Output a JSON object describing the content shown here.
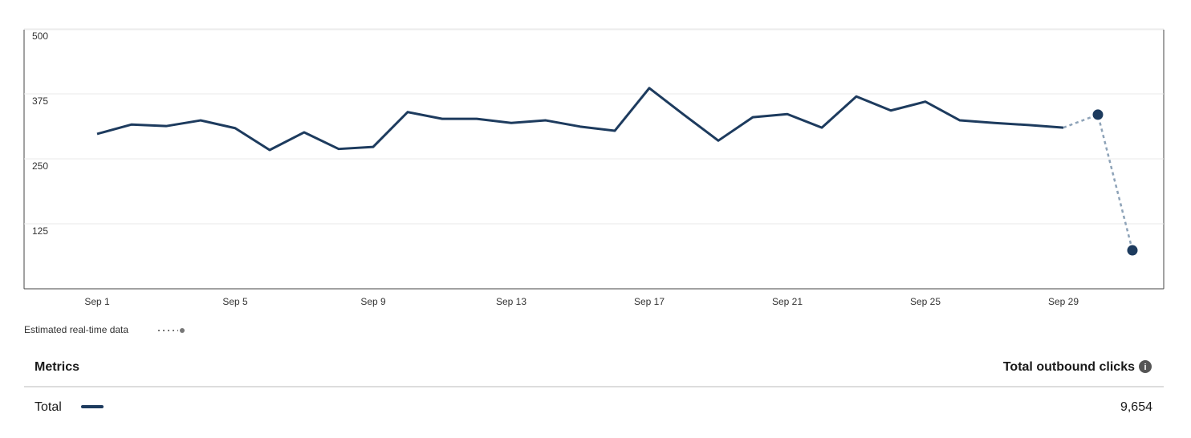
{
  "chart_data": {
    "type": "line",
    "categories": [
      "Sep 1",
      null,
      null,
      null,
      "Sep 5",
      null,
      null,
      null,
      "Sep 9",
      null,
      null,
      null,
      "Sep 13",
      null,
      null,
      null,
      "Sep 17",
      null,
      null,
      null,
      "Sep 21",
      null,
      null,
      null,
      "Sep 25",
      null,
      null,
      null,
      "Sep 29",
      null,
      null
    ],
    "series": [
      {
        "name": "Total",
        "color": "#1d3b5e",
        "values": [
          298,
          316,
          313,
          324,
          309,
          267,
          301,
          269,
          273,
          340,
          327,
          327,
          319,
          324,
          312,
          304,
          386,
          335,
          285,
          330,
          336,
          310,
          370,
          343,
          360,
          324,
          319,
          315,
          310,
          null,
          null
        ]
      },
      {
        "name": "Estimated real-time data",
        "color": "#8ea3b8",
        "values": [
          null,
          null,
          null,
          null,
          null,
          null,
          null,
          null,
          null,
          null,
          null,
          null,
          null,
          null,
          null,
          null,
          null,
          null,
          null,
          null,
          null,
          null,
          null,
          null,
          null,
          null,
          null,
          null,
          null,
          335,
          74
        ]
      }
    ],
    "ylim": [
      0,
      500
    ],
    "yticks": [
      125,
      250,
      375,
      500
    ],
    "grid": true
  },
  "table": {
    "headers": [
      "Metrics",
      "Total outbound clicks"
    ],
    "total": "9,654"
  }
}
